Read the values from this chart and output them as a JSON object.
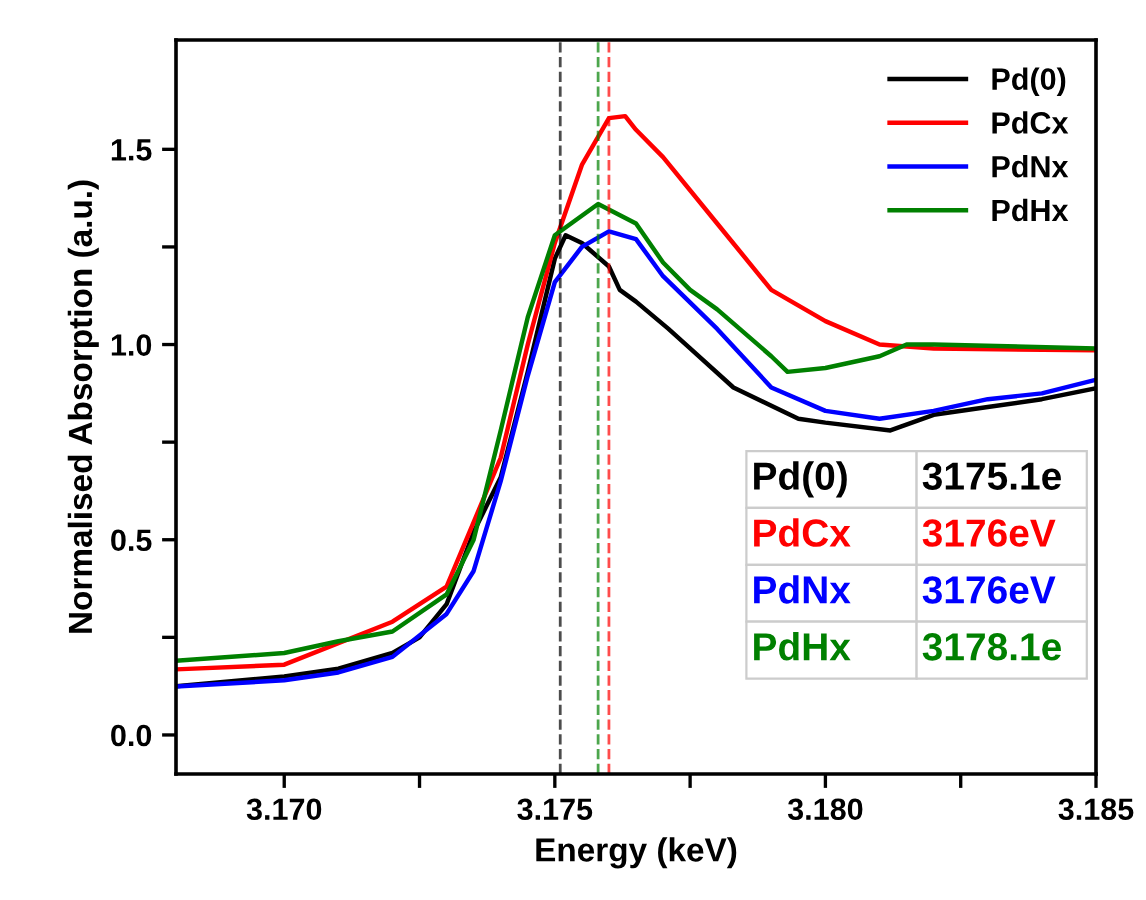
{
  "chart_data": {
    "type": "line",
    "xlabel": "Energy (keV)",
    "ylabel": "Normalised Absorption (a.u.)",
    "xlim": [
      3.168,
      3.185
    ],
    "ylim": [
      -0.1,
      1.78
    ],
    "xticks": [
      {
        "value": 3.17,
        "label": "3.170"
      },
      {
        "value": 3.1725,
        "label": null
      },
      {
        "value": 3.175,
        "label": "3.175"
      },
      {
        "value": 3.1775,
        "label": null
      },
      {
        "value": 3.18,
        "label": "3.180"
      },
      {
        "value": 3.1825,
        "label": null
      },
      {
        "value": 3.185,
        "label": "3.185"
      }
    ],
    "yticks": [
      {
        "value": 0,
        "label": "0.0"
      },
      {
        "value": 0.25,
        "label": null
      },
      0.5,
      {
        "value": 0.75,
        "label": null
      },
      {
        "value": 1,
        "label": "1.0"
      },
      {
        "value": 1.25,
        "label": null
      },
      1.5
    ],
    "grid": false,
    "legend": "top right",
    "marker": "none",
    "line_style": "solid",
    "series": [
      {
        "name": "Pd(0)",
        "color": "#000000",
        "x": [
          3.168,
          3.17,
          3.171,
          3.172,
          3.1725,
          3.173,
          3.1735,
          3.174,
          3.1745,
          3.175,
          3.1752,
          3.1755,
          3.176,
          3.1762,
          3.1765,
          3.1771,
          3.1775,
          3.1783,
          3.1795,
          3.18,
          3.1812,
          3.182,
          3.183,
          3.184,
          3.185
        ],
        "values": [
          0.125,
          0.15,
          0.17,
          0.21,
          0.25,
          0.335,
          0.52,
          0.66,
          0.93,
          1.22,
          1.28,
          1.26,
          1.2,
          1.14,
          1.11,
          1.04,
          0.99,
          0.89,
          0.81,
          0.8,
          0.78,
          0.82,
          0.84,
          0.86,
          0.888
        ]
      },
      {
        "name": "PdCx",
        "color": "#ff0000",
        "x": [
          3.168,
          3.17,
          3.172,
          3.173,
          3.174,
          3.1745,
          3.175,
          3.1755,
          3.176,
          3.1763,
          3.1765,
          3.177,
          3.178,
          3.179,
          3.18,
          3.181,
          3.182,
          3.185
        ],
        "values": [
          0.168,
          0.18,
          0.29,
          0.38,
          0.71,
          1.0,
          1.26,
          1.46,
          1.58,
          1.585,
          1.55,
          1.48,
          1.31,
          1.14,
          1.06,
          1.0,
          0.99,
          0.985
        ]
      },
      {
        "name": "PdNx",
        "color": "#0000ff",
        "x": [
          3.168,
          3.17,
          3.171,
          3.172,
          3.173,
          3.1735,
          3.174,
          3.1745,
          3.175,
          3.1755,
          3.176,
          3.1765,
          3.177,
          3.178,
          3.179,
          3.18,
          3.181,
          3.182,
          3.183,
          3.184,
          3.185
        ],
        "values": [
          0.124,
          0.14,
          0.16,
          0.2,
          0.31,
          0.42,
          0.65,
          0.92,
          1.16,
          1.25,
          1.29,
          1.27,
          1.175,
          1.04,
          0.89,
          0.83,
          0.81,
          0.83,
          0.86,
          0.875,
          0.91
        ]
      },
      {
        "name": "PdHx",
        "color": "#008000",
        "x": [
          3.168,
          3.17,
          3.171,
          3.172,
          3.173,
          3.1735,
          3.174,
          3.1745,
          3.175,
          3.1753,
          3.1758,
          3.1765,
          3.177,
          3.1775,
          3.178,
          3.179,
          3.1793,
          3.18,
          3.181,
          3.1815,
          3.182,
          3.185
        ],
        "values": [
          0.19,
          0.21,
          0.24,
          0.265,
          0.36,
          0.5,
          0.78,
          1.07,
          1.28,
          1.31,
          1.36,
          1.31,
          1.21,
          1.14,
          1.09,
          0.97,
          0.93,
          0.94,
          0.97,
          1.0,
          1.0,
          0.99
        ]
      }
    ],
    "ref_lines": [
      {
        "axis": "x",
        "value": 3.1751,
        "color": "#000000",
        "line_style": "dashed"
      },
      {
        "axis": "x",
        "value": 3.1758,
        "color": "#008000",
        "line_style": "dashed"
      },
      {
        "axis": "x",
        "value": 3.176,
        "color": "#ff0000",
        "line_style": "dashed"
      }
    ],
    "annotations": [
      "Pd(0)",
      "3175.1e",
      "PdCx",
      "3176eV",
      "PdNx",
      "3176eV",
      "PdHx",
      "3178.1e"
    ]
  }
}
